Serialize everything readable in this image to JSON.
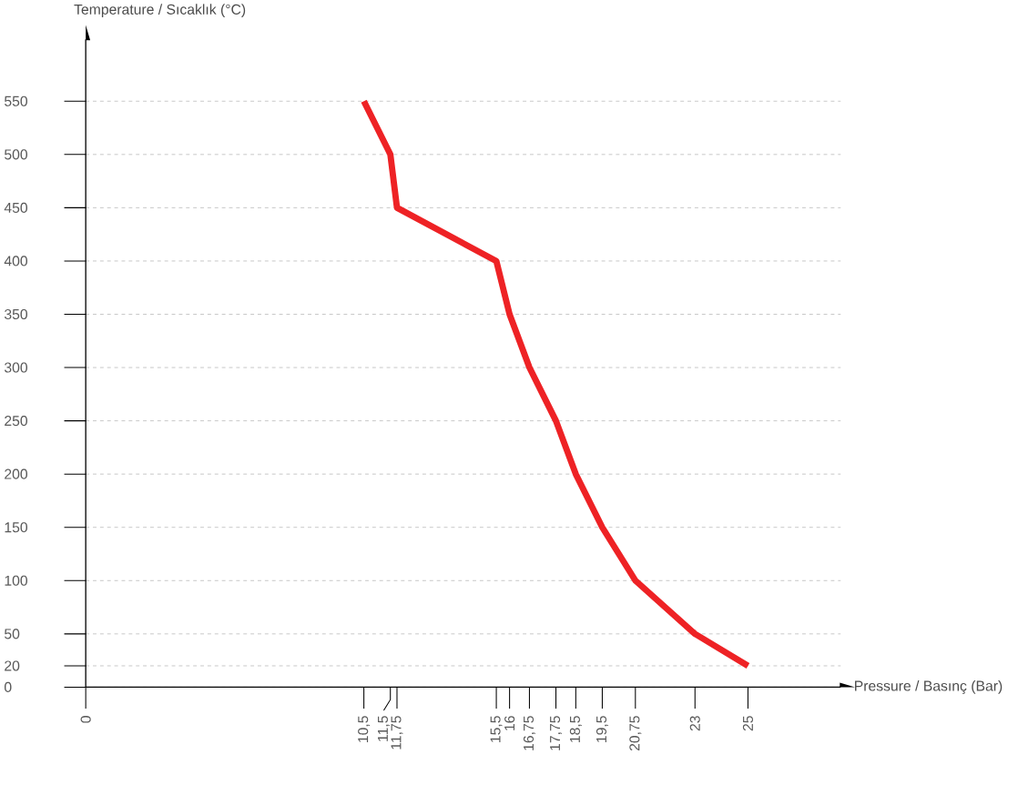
{
  "chart_data": {
    "type": "line",
    "xlabel": "Pressure / Basınç (Bar)",
    "ylabel": "Temperature / Sıcaklık (°C)",
    "x": [
      10.5,
      11.5,
      11.75,
      15.5,
      16,
      16.75,
      17.75,
      18.5,
      19.5,
      20.75,
      23,
      25
    ],
    "series": [
      {
        "color": "#ee2225",
        "values": [
          550,
          500,
          450,
          400,
          350,
          300,
          250,
          200,
          150,
          100,
          50,
          20
        ]
      }
    ],
    "xlim": [
      0,
      28.5
    ],
    "ylim": [
      0,
      608
    ],
    "xticks": [
      0,
      {
        "value": 10.5,
        "label": "10,5"
      },
      {
        "value": 11.5,
        "label": "11,5"
      },
      {
        "value": 11.75,
        "label": "11,75"
      },
      {
        "value": 15.5,
        "label": "15,5"
      },
      16,
      {
        "value": 16.75,
        "label": "16,75"
      },
      {
        "value": 17.75,
        "label": "17,75"
      },
      {
        "value": 18.5,
        "label": "18,5"
      },
      {
        "value": 19.5,
        "label": "19,5"
      },
      {
        "value": 20.75,
        "label": "20,75"
      },
      23,
      25
    ],
    "yticks": [
      0,
      20,
      50,
      100,
      150,
      200,
      250,
      300,
      350,
      400,
      450,
      500,
      550
    ],
    "grid": "y",
    "marker": "none",
    "line_style": "solid"
  }
}
